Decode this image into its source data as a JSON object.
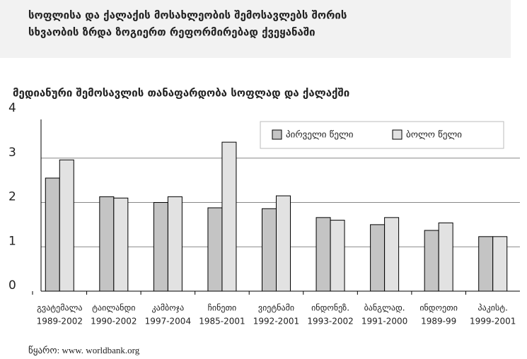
{
  "header": {
    "title_lines": [
      "სოფლისა და ქალაქის მოსახლეობის შემოსავლებს შორის",
      "სხვაობის ზრდა ზოგიერთ რეფორმირებად ქვეყანაში"
    ]
  },
  "chart_data": {
    "type": "bar",
    "title": "მედიანური შემოსავლის თანაფარდობა სოფლად და ქალაქში",
    "categories": [
      "გვატემალა",
      "ტაილანდი",
      "კამბოჯა",
      "ჩინეთი",
      "ვიეტნამი",
      "ინდონეზ.",
      "ბანგლად.",
      "ინდოეთი",
      "პაკისტ."
    ],
    "periods": [
      "1989-2002",
      "1990-2002",
      "1997-2004",
      "1985-2001",
      "1992-2001",
      "1993-2002",
      "1991-2000",
      "1989-99",
      "1999-2001"
    ],
    "series": [
      {
        "name": "პირველი წელი",
        "color": "#c4c4c4",
        "values": [
          2.55,
          2.13,
          2.0,
          1.88,
          1.86,
          1.66,
          1.5,
          1.37,
          1.23
        ]
      },
      {
        "name": "ბოლო წელი",
        "color": "#e2e2e2",
        "values": [
          2.96,
          2.1,
          2.13,
          3.36,
          2.15,
          1.6,
          1.66,
          1.54,
          1.23
        ]
      }
    ],
    "ylim": [
      0,
      4
    ],
    "yticks": [
      0,
      1,
      2,
      3,
      4
    ],
    "grid": true,
    "legend": "top-right"
  },
  "source": "წყარო: www. worldbank.org"
}
